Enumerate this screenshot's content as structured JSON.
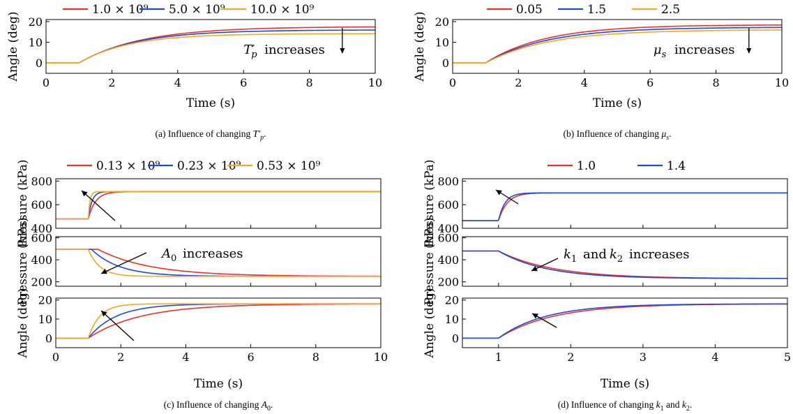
{
  "colors": {
    "red": "#e8312a",
    "blue": "#1f49d6",
    "orange": "#f5a623"
  },
  "chart_data": [
    {
      "id": "a",
      "type": "line",
      "caption": {
        "prefix": "(a) Influence of changing ",
        "symbol": "T′p",
        "suffix": "."
      },
      "legend": {
        "placement": "top",
        "entries": [
          "1.0 × 10⁹",
          "5.0 × 10⁹",
          "10.0 × 10⁹"
        ]
      },
      "xlabel": "Time (s)",
      "xlim": [
        0,
        10
      ],
      "xticks": [
        "0",
        "2",
        "4",
        "6",
        "8",
        "10"
      ],
      "panels": [
        {
          "ylabel": "Angle (deg)",
          "ylim": [
            -5,
            21
          ],
          "yticks": [
            "0",
            "10",
            "20"
          ],
          "annotation": {
            "text_symbol": "T′p",
            "text": "increases",
            "arrow": "down"
          },
          "series": [
            {
              "color": "red",
              "base": 0,
              "final": 17.6,
              "step_time": 1.0,
              "tau": 1.9
            },
            {
              "color": "blue",
              "base": 0,
              "final": 16.0,
              "step_time": 1.0,
              "tau": 1.7
            },
            {
              "color": "orange",
              "base": 0,
              "final": 14.2,
              "step_time": 1.0,
              "tau": 1.5
            }
          ]
        }
      ]
    },
    {
      "id": "b",
      "type": "line",
      "caption": {
        "prefix": "(b) Influence of changing ",
        "symbol": "μs",
        "suffix": "."
      },
      "legend": {
        "placement": "top",
        "entries": [
          "0.05",
          "1.5",
          "2.5"
        ]
      },
      "xlabel": "Time (s)",
      "xlim": [
        0,
        10
      ],
      "xticks": [
        "0",
        "2",
        "4",
        "6",
        "8",
        "10"
      ],
      "panels": [
        {
          "ylabel": "Angle (deg)",
          "ylim": [
            -5,
            21
          ],
          "yticks": [
            "0",
            "10",
            "20"
          ],
          "annotation": {
            "text_symbol": "μs",
            "text": "increases",
            "arrow": "down"
          },
          "series": [
            {
              "color": "red",
              "base": 0,
              "final": 18.5,
              "step_time": 1.0,
              "tau": 1.8
            },
            {
              "color": "blue",
              "base": 0,
              "final": 17.3,
              "step_time": 1.0,
              "tau": 1.85
            },
            {
              "color": "orange",
              "base": 0,
              "final": 16.1,
              "step_time": 1.0,
              "tau": 1.9
            }
          ]
        }
      ]
    },
    {
      "id": "c",
      "type": "line",
      "caption": {
        "prefix": "(c) Influence of changing ",
        "symbol": "A0",
        "suffix": "."
      },
      "legend": {
        "placement": "top",
        "entries": [
          "0.13 × 10⁹",
          "0.23 × 10⁹",
          "0.53 × 10⁹"
        ]
      },
      "xlabel": "Time (s)",
      "xlim": [
        0,
        10
      ],
      "xticks": [
        "0",
        "2",
        "4",
        "6",
        "8",
        "10"
      ],
      "panels": [
        {
          "ylabel": "Pressure (kPa)",
          "ylim": [
            400,
            820
          ],
          "yticks": [
            "400",
            "600",
            "800"
          ],
          "series": [
            {
              "color": "red",
              "base": 480,
              "final": 710,
              "step_time": 1.0,
              "tau": 0.22
            },
            {
              "color": "blue",
              "base": 480,
              "final": 710,
              "step_time": 1.0,
              "tau": 0.11
            },
            {
              "color": "orange",
              "base": 480,
              "final": 710,
              "step_time": 1.0,
              "tau": 0.05
            }
          ]
        },
        {
          "ylabel": "Pressure (kPa)",
          "ylim": [
            160,
            610
          ],
          "yticks": [
            "200",
            "400",
            "600"
          ],
          "annotation": {
            "text_symbol": "A0",
            "text": "increases",
            "arrow": "diagonal"
          },
          "series": [
            {
              "color": "red",
              "base": 495,
              "final": 250,
              "step_time": 1.3,
              "tau": 1.6
            },
            {
              "color": "blue",
              "base": 495,
              "final": 250,
              "step_time": 1.1,
              "tau": 0.85
            },
            {
              "color": "orange",
              "base": 495,
              "final": 250,
              "step_time": 1.0,
              "tau": 0.35
            }
          ]
        },
        {
          "ylabel": "Angle (deg)",
          "ylim": [
            -5,
            21
          ],
          "yticks": [
            "0",
            "10",
            "20"
          ],
          "series": [
            {
              "color": "red",
              "base": 0,
              "final": 18,
              "step_time": 1.0,
              "tau": 1.6
            },
            {
              "color": "blue",
              "base": 0,
              "final": 18,
              "step_time": 1.0,
              "tau": 0.85
            },
            {
              "color": "orange",
              "base": 0,
              "final": 18,
              "step_time": 1.0,
              "tau": 0.35
            }
          ]
        }
      ]
    },
    {
      "id": "d",
      "type": "line",
      "caption": {
        "prefix": "(d) Influence of changing ",
        "symbol": "k1",
        "middle": " and ",
        "symbol2": "k2",
        "suffix": "."
      },
      "legend": {
        "placement": "top",
        "entries": [
          "1.0",
          "1.4"
        ]
      },
      "xlabel": "Time (s)",
      "xlim": [
        0.5,
        5
      ],
      "xticks": [
        "1",
        "2",
        "3",
        "4",
        "5"
      ],
      "panels": [
        {
          "ylabel": "Pressure (kPa)",
          "ylim": [
            400,
            820
          ],
          "yticks": [
            "400",
            "600",
            "800"
          ],
          "series": [
            {
              "color": "red",
              "base": 465,
              "final": 700,
              "step_time": 1.0,
              "tau": 0.12
            },
            {
              "color": "blue",
              "base": 465,
              "final": 700,
              "step_time": 1.0,
              "tau": 0.09
            }
          ]
        },
        {
          "ylabel": "Pressure (kPa)",
          "ylim": [
            160,
            610
          ],
          "yticks": [
            "200",
            "400",
            "600"
          ],
          "annotation": {
            "text_symbol": "k1",
            "text_mid": "and",
            "text_symbol2": "k2",
            "text": "increases",
            "arrow": "diagonal"
          },
          "series": [
            {
              "color": "red",
              "base": 480,
              "final": 230,
              "step_time": 1.0,
              "tau": 0.75
            },
            {
              "color": "blue",
              "base": 480,
              "final": 230,
              "step_time": 1.0,
              "tau": 0.65
            }
          ]
        },
        {
          "ylabel": "Angle (deg)",
          "ylim": [
            -5,
            21
          ],
          "yticks": [
            "0",
            "10",
            "20"
          ],
          "series": [
            {
              "color": "red",
              "base": 0,
              "final": 18,
              "step_time": 1.0,
              "tau": 0.75
            },
            {
              "color": "blue",
              "base": 0,
              "final": 18,
              "step_time": 1.0,
              "tau": 0.65
            }
          ]
        }
      ]
    }
  ]
}
